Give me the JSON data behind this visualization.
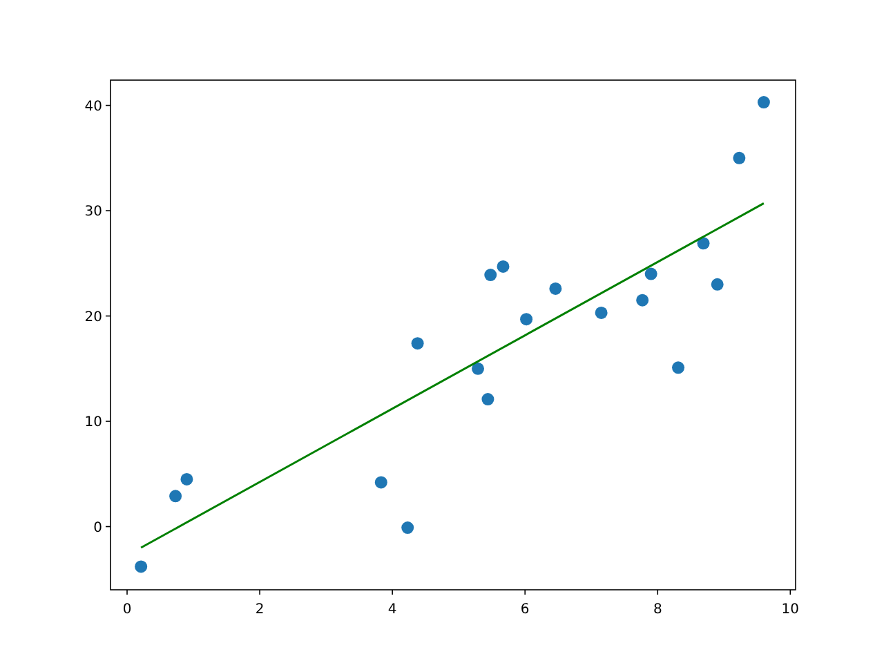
{
  "chart_data": {
    "type": "scatter",
    "xlim": [
      -0.25,
      10.08
    ],
    "ylim": [
      -6.0,
      42.4
    ],
    "xticks": [
      0,
      2,
      4,
      6,
      8,
      10
    ],
    "yticks": [
      0,
      10,
      20,
      30,
      40
    ],
    "grid": false,
    "series": [
      {
        "color": "#1f77b4",
        "marker": "circle",
        "x": [
          0.21,
          0.73,
          0.9,
          3.83,
          4.23,
          4.38,
          5.29,
          5.44,
          5.48,
          5.67,
          6.02,
          6.46,
          7.15,
          7.77,
          7.9,
          8.31,
          8.69,
          8.9,
          9.23,
          9.6
        ],
        "values": [
          -3.8,
          2.9,
          4.5,
          4.2,
          -0.1,
          17.4,
          15.0,
          12.1,
          23.9,
          24.7,
          19.7,
          22.6,
          20.3,
          21.5,
          24.0,
          15.1,
          26.9,
          23.0,
          35.0,
          40.3
        ]
      },
      {
        "type": "line",
        "color": "#008000",
        "marker": "none",
        "line_style": "solid",
        "x": [
          0.21,
          9.6
        ],
        "values": [
          -2.0,
          30.7
        ]
      }
    ]
  }
}
